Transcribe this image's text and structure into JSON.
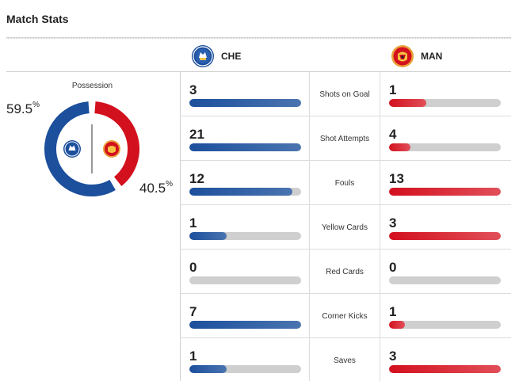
{
  "title": "Match Stats",
  "teams": {
    "home": {
      "abbr": "CHE",
      "crest": "chelsea-crest-icon",
      "color": "#1c4f9c"
    },
    "away": {
      "abbr": "MAN",
      "crest": "man-utd-crest-icon",
      "color": "#d3101e"
    }
  },
  "possession": {
    "label": "Possession",
    "home_value": "59.5",
    "away_value": "40.5",
    "unit": "%",
    "home_fraction": 0.595,
    "away_fraction": 0.405
  },
  "stats": [
    {
      "label": "Shots on Goal",
      "home": "3",
      "away": "1",
      "home_fill": 1.0,
      "away_fill": 0.33
    },
    {
      "label": "Shot Attempts",
      "home": "21",
      "away": "4",
      "home_fill": 1.0,
      "away_fill": 0.19
    },
    {
      "label": "Fouls",
      "home": "12",
      "away": "13",
      "home_fill": 0.92,
      "away_fill": 1.0
    },
    {
      "label": "Yellow Cards",
      "home": "1",
      "away": "3",
      "home_fill": 0.33,
      "away_fill": 1.0
    },
    {
      "label": "Red Cards",
      "home": "0",
      "away": "0",
      "home_fill": 0,
      "away_fill": 0
    },
    {
      "label": "Corner Kicks",
      "home": "7",
      "away": "1",
      "home_fill": 1.0,
      "away_fill": 0.14
    },
    {
      "label": "Saves",
      "home": "1",
      "away": "3",
      "home_fill": 0.33,
      "away_fill": 1.0
    }
  ]
}
